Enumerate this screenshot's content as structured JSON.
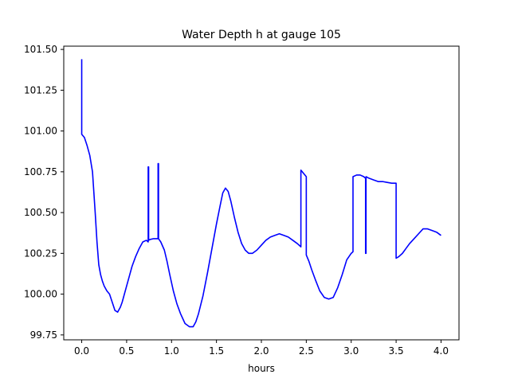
{
  "chart_data": {
    "type": "line",
    "title": "Water Depth h at gauge 105",
    "xlabel": "hours",
    "ylabel": "",
    "xlim": [
      -0.2,
      4.2
    ],
    "ylim": [
      99.72,
      101.52
    ],
    "xticks": [
      0.0,
      0.5,
      1.0,
      1.5,
      2.0,
      2.5,
      3.0,
      3.5,
      4.0
    ],
    "xtick_labels": [
      "0.0",
      "0.5",
      "1.0",
      "1.5",
      "2.0",
      "2.5",
      "3.0",
      "3.5",
      "4.0"
    ],
    "yticks": [
      99.75,
      100.0,
      100.25,
      100.5,
      100.75,
      101.0,
      101.25,
      101.5
    ],
    "ytick_labels": [
      "99.75",
      "100.00",
      "100.25",
      "100.50",
      "100.75",
      "101.00",
      "101.25",
      "101.50"
    ],
    "grid": false,
    "series": [
      {
        "color": "#0000ff",
        "x": [
          0.0,
          0.0,
          0.0,
          0.03,
          0.06,
          0.09,
          0.12,
          0.15,
          0.17,
          0.19,
          0.21,
          0.23,
          0.25,
          0.28,
          0.31,
          0.34,
          0.37,
          0.4,
          0.43,
          0.45,
          0.47,
          0.5,
          0.53,
          0.56,
          0.6,
          0.64,
          0.68,
          0.72,
          0.74,
          0.74,
          0.745,
          0.745,
          0.76,
          0.8,
          0.84,
          0.85,
          0.85,
          0.855,
          0.855,
          0.88,
          0.92,
          0.95,
          0.98,
          1.02,
          1.06,
          1.1,
          1.15,
          1.2,
          1.24,
          1.27,
          1.3,
          1.35,
          1.4,
          1.45,
          1.5,
          1.54,
          1.57,
          1.6,
          1.63,
          1.66,
          1.7,
          1.74,
          1.78,
          1.82,
          1.86,
          1.9,
          1.95,
          2.0,
          2.05,
          2.1,
          2.15,
          2.2,
          2.25,
          2.3,
          2.35,
          2.4,
          2.44,
          2.44,
          2.47,
          2.5,
          2.5,
          2.53,
          2.56,
          2.6,
          2.65,
          2.7,
          2.75,
          2.8,
          2.85,
          2.9,
          2.95,
          3.0,
          3.02,
          3.02,
          3.06,
          3.1,
          3.14,
          3.16,
          3.16,
          3.165,
          3.165,
          3.2,
          3.25,
          3.3,
          3.35,
          3.4,
          3.45,
          3.5,
          3.5,
          3.53,
          3.57,
          3.61,
          3.65,
          3.7,
          3.75,
          3.8,
          3.85,
          3.9,
          3.95,
          4.0
        ],
        "y": [
          101.44,
          100.98,
          100.98,
          100.96,
          100.91,
          100.85,
          100.75,
          100.5,
          100.32,
          100.18,
          100.12,
          100.08,
          100.05,
          100.02,
          100.0,
          99.95,
          99.9,
          99.89,
          99.92,
          99.95,
          99.99,
          100.05,
          100.11,
          100.17,
          100.23,
          100.28,
          100.32,
          100.33,
          100.32,
          100.78,
          100.78,
          100.33,
          100.335,
          100.34,
          100.34,
          100.34,
          100.8,
          100.8,
          100.34,
          100.32,
          100.27,
          100.2,
          100.12,
          100.02,
          99.94,
          99.88,
          99.82,
          99.8,
          99.8,
          99.83,
          99.88,
          99.99,
          100.13,
          100.28,
          100.43,
          100.54,
          100.62,
          100.65,
          100.63,
          100.57,
          100.47,
          100.38,
          100.31,
          100.27,
          100.25,
          100.25,
          100.27,
          100.3,
          100.33,
          100.35,
          100.36,
          100.37,
          100.36,
          100.35,
          100.33,
          100.31,
          100.29,
          100.76,
          100.74,
          100.72,
          100.24,
          100.2,
          100.15,
          100.09,
          100.02,
          99.98,
          99.97,
          99.98,
          100.04,
          100.12,
          100.21,
          100.25,
          100.26,
          100.72,
          100.73,
          100.73,
          100.72,
          100.71,
          100.25,
          100.25,
          100.72,
          100.71,
          100.7,
          100.69,
          100.69,
          100.685,
          100.68,
          100.68,
          100.22,
          100.23,
          100.25,
          100.28,
          100.31,
          100.34,
          100.37,
          100.4,
          100.4,
          100.39,
          100.38,
          100.36
        ]
      }
    ]
  }
}
